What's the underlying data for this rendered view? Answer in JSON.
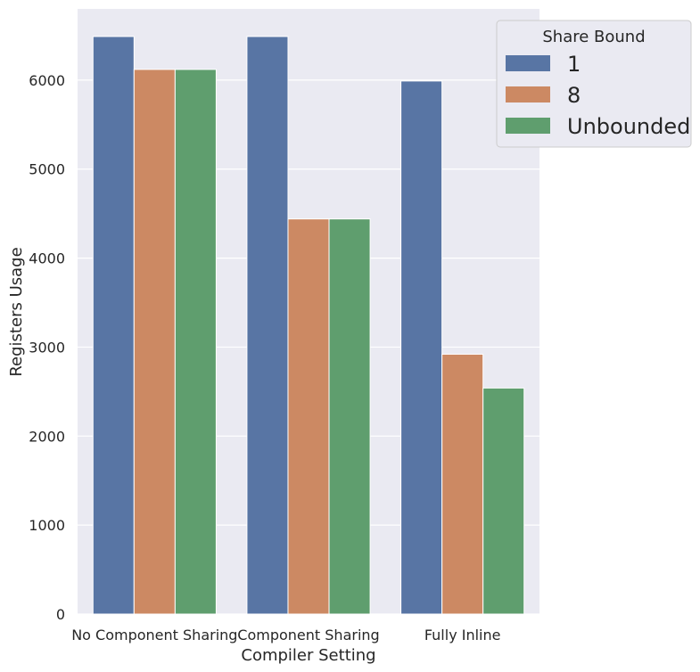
{
  "chart_data": {
    "type": "bar",
    "categories": [
      "No Component Sharing",
      "Component Sharing",
      "Fully Inline"
    ],
    "series": [
      {
        "name": "1",
        "color": "#5875a4",
        "values": [
          6490,
          6490,
          5990
        ]
      },
      {
        "name": "8",
        "color": "#cc8963",
        "values": [
          6120,
          4440,
          2920
        ]
      },
      {
        "name": "Unbounded",
        "color": "#5f9e6e",
        "values": [
          6120,
          4440,
          2540
        ]
      }
    ],
    "xlabel": "Compiler Setting",
    "ylabel": "Registers Usage",
    "ylim": [
      0,
      6800
    ],
    "yticks": [
      0,
      1000,
      2000,
      3000,
      4000,
      5000,
      6000
    ],
    "grid": true,
    "background": "#eaeaf2",
    "legend": {
      "title": "Share Bound",
      "placement": "top-right"
    }
  }
}
